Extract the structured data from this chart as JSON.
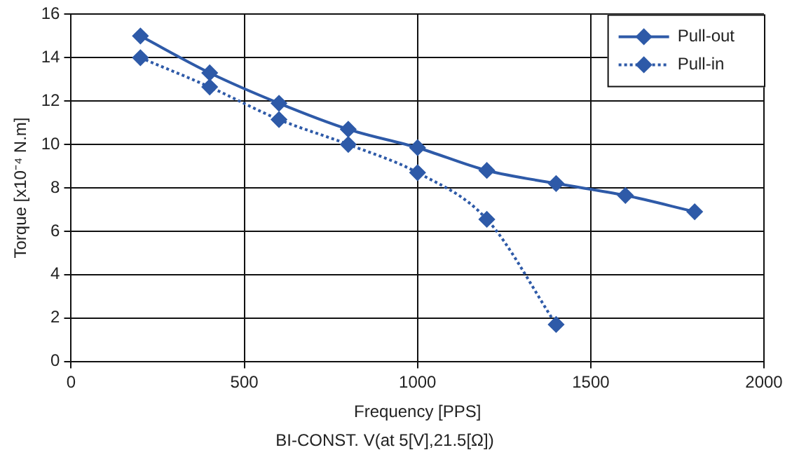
{
  "chart_data": {
    "type": "line",
    "title": "BI-CONST. V(at 5[V],21.5[Ω])",
    "xlabel": "Frequency [PPS]",
    "ylabel": "Torque [x10⁻⁴ N.m]",
    "x": [
      200,
      400,
      600,
      800,
      1000,
      1200,
      1400,
      1600,
      1800
    ],
    "series": [
      {
        "name": "Pull-out",
        "color": "#2e5aa8",
        "marker": "diamond",
        "line_style": "solid",
        "values": [
          15.0,
          13.3,
          11.9,
          10.7,
          9.85,
          8.8,
          8.2,
          7.65,
          6.9
        ]
      },
      {
        "name": "Pull-in",
        "color": "#2e5aa8",
        "marker": "diamond",
        "line_style": "dotted",
        "values": [
          14.0,
          12.65,
          11.15,
          10.0,
          8.7,
          6.55,
          1.7,
          null,
          null
        ]
      }
    ],
    "xlim": [
      0,
      2000
    ],
    "xticks": [
      0,
      500,
      1000,
      1500,
      2000
    ],
    "ylim": [
      0,
      16
    ],
    "yticks": [
      0,
      2,
      4,
      6,
      8,
      10,
      12,
      14,
      16
    ],
    "grid": true,
    "legend": "top right"
  }
}
